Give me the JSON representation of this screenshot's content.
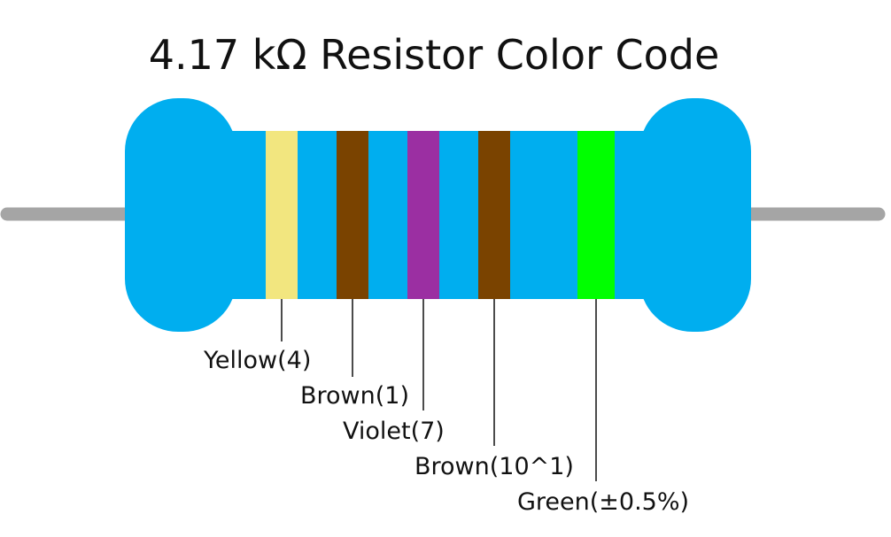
{
  "title": "4.17 kΩ Resistor Color Code",
  "colors": {
    "body": "#00aeef",
    "lead": "#a5a5a5",
    "leader_line": "#111111"
  },
  "bands": [
    {
      "color_name": "Yellow",
      "hex": "#f2e67f",
      "label": "Yellow(4)"
    },
    {
      "color_name": "Brown",
      "hex": "#7a4300",
      "label": "Brown(1)"
    },
    {
      "color_name": "Violet",
      "hex": "#9b2fa2",
      "label": "Violet(7)"
    },
    {
      "color_name": "Brown",
      "hex": "#7a4300",
      "label": "Brown(10^1)"
    },
    {
      "color_name": "Green",
      "hex": "#00ff00",
      "label": "Green(±0.5%)"
    }
  ]
}
